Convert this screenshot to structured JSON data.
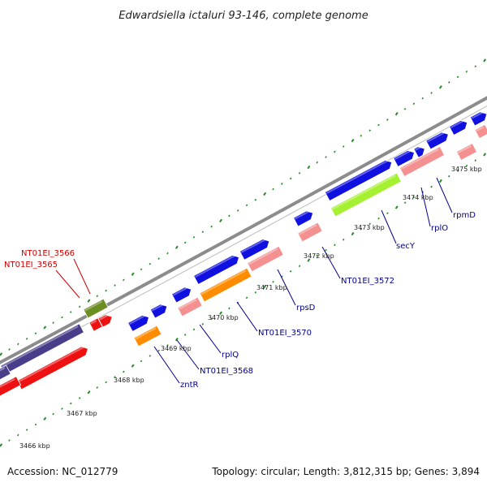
{
  "title": "Edwardsiella ictaluri 93-146, complete genome",
  "footer": {
    "accession": "Accession: NC_012779",
    "summary": "Topology: circular; Length: 3,812,315 bp; Genes: 3,894"
  },
  "kbp_labels": [
    "3466 kbp",
    "3467 kbp",
    "3468 kbp",
    "3469 kbp",
    "3470 kbp",
    "3471 kbp",
    "3472 kbp",
    "3473 kbp",
    "3474 kbp",
    "3475 kbp"
  ],
  "gene_labels": [
    {
      "text": "NT01EI_3566",
      "color": "#d00000"
    },
    {
      "text": "NT01EI_3565",
      "color": "#d00000"
    },
    {
      "text": "zntR",
      "color": "#00008b"
    },
    {
      "text": "NT01EI_3568",
      "color": "#00008b"
    },
    {
      "text": "rplQ",
      "color": "#00008b"
    },
    {
      "text": "NT01EI_3570",
      "color": "#00008b"
    },
    {
      "text": "rpsD",
      "color": "#00008b"
    },
    {
      "text": "NT01EI_3572",
      "color": "#00008b"
    },
    {
      "text": "secY",
      "color": "#00008b"
    },
    {
      "text": "rplO",
      "color": "#00008b"
    },
    {
      "text": "rpmD",
      "color": "#00008b"
    }
  ],
  "colors": {
    "forward_cds": "#1010e0",
    "reverse_cds": "#ee1111",
    "rna": "#f49090",
    "orange": "#ff8c00",
    "lime": "#a6f032",
    "olive": "#6b8e23",
    "purple": "#483d8b",
    "backbone": "#888888",
    "dots": "#228b22"
  }
}
